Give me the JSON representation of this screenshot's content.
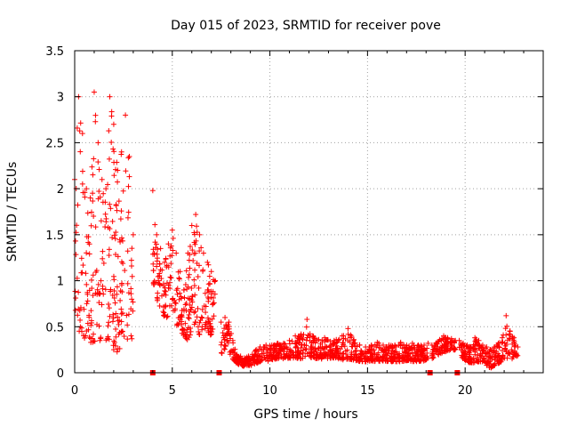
{
  "chart_data": {
    "type": "scatter",
    "title": "Day 015 of 2023, SRMTID for receiver pove",
    "xlabel": "GPS time / hours",
    "ylabel": "SRMTID / TECUs",
    "xlim": [
      0,
      24
    ],
    "ylim": [
      0,
      3.5
    ],
    "xticks": [
      0,
      5,
      10,
      15,
      20
    ],
    "xtick_labels": [
      "0",
      "5",
      "10",
      "15",
      "20"
    ],
    "yticks": [
      0,
      0.5,
      1,
      1.5,
      2,
      2.5,
      3,
      3.5
    ],
    "ytick_labels": [
      "0",
      "0.5",
      "1",
      "1.5",
      "2",
      "2.5",
      "3",
      "3.5"
    ],
    "grid": true,
    "marker": "plus",
    "color": "#ff0000",
    "zero_markers_x": [
      4.0,
      7.4,
      18.2,
      19.6
    ],
    "series": [
      {
        "name": "SRMTID",
        "segments": [
          {
            "x": [
              0.0,
              0.2,
              0.4,
              0.6,
              0.8,
              1.0,
              1.2,
              1.4,
              1.6,
              1.8,
              2.0,
              2.2,
              2.4,
              2.6,
              2.8,
              3.0
            ],
            "low": [
              0.65,
              0.45,
              0.35,
              0.4,
              0.3,
              0.35,
              0.3,
              0.4,
              0.35,
              0.3,
              0.25,
              0.2,
              0.3,
              0.35,
              0.3,
              0.4
            ],
            "high": [
              2.1,
              3.0,
              2.6,
              2.0,
              1.9,
              3.05,
              2.5,
              2.1,
              2.0,
              3.0,
              2.7,
              2.2,
              2.4,
              2.8,
              2.35,
              1.5
            ]
          },
          {
            "x": [
              4.0,
              4.2,
              4.4,
              4.6,
              4.8,
              5.0,
              5.2,
              5.4,
              5.6,
              5.8,
              6.0,
              6.2,
              6.4,
              6.6,
              6.8,
              7.0,
              7.2
            ],
            "low": [
              1.0,
              0.8,
              0.7,
              0.6,
              0.6,
              0.7,
              0.5,
              0.45,
              0.4,
              0.35,
              0.45,
              0.55,
              0.4,
              0.5,
              0.45,
              0.4,
              0.55
            ],
            "high": [
              1.98,
              1.5,
              1.35,
              1.2,
              1.4,
              1.55,
              1.3,
              1.1,
              0.9,
              1.3,
              1.6,
              1.72,
              1.5,
              1.3,
              1.2,
              1.1,
              1.0
            ]
          },
          {
            "x": [
              7.5,
              7.7,
              7.9,
              8.1,
              8.3,
              8.5,
              8.7,
              8.9,
              9.1,
              9.3,
              9.5,
              9.8,
              10.1,
              10.4,
              10.7,
              11.0,
              11.3,
              11.6,
              11.9,
              12.2,
              12.5,
              12.8,
              13.1,
              13.4,
              13.7,
              14.0,
              14.3,
              14.6,
              14.9,
              15.2,
              15.5,
              15.8,
              16.1,
              16.4,
              16.7,
              17.0,
              17.3,
              17.6,
              17.9,
              18.1
            ],
            "low": [
              0.2,
              0.25,
              0.22,
              0.15,
              0.1,
              0.08,
              0.07,
              0.08,
              0.08,
              0.1,
              0.12,
              0.12,
              0.14,
              0.15,
              0.15,
              0.16,
              0.16,
              0.15,
              0.15,
              0.16,
              0.15,
              0.15,
              0.16,
              0.16,
              0.14,
              0.15,
              0.14,
              0.12,
              0.12,
              0.13,
              0.12,
              0.13,
              0.12,
              0.12,
              0.12,
              0.13,
              0.12,
              0.12,
              0.13,
              0.15
            ],
            "high": [
              0.55,
              0.6,
              0.55,
              0.35,
              0.2,
              0.18,
              0.16,
              0.18,
              0.2,
              0.25,
              0.28,
              0.3,
              0.3,
              0.32,
              0.32,
              0.35,
              0.4,
              0.42,
              0.58,
              0.4,
              0.36,
              0.38,
              0.34,
              0.36,
              0.4,
              0.48,
              0.36,
              0.3,
              0.28,
              0.3,
              0.33,
              0.3,
              0.3,
              0.3,
              0.33,
              0.3,
              0.32,
              0.3,
              0.3,
              0.32
            ]
          },
          {
            "x": [
              18.3,
              18.5,
              18.7,
              18.9,
              19.1,
              19.3,
              19.5
            ],
            "low": [
              0.15,
              0.18,
              0.2,
              0.22,
              0.24,
              0.25,
              0.25
            ],
            "high": [
              0.3,
              0.32,
              0.36,
              0.4,
              0.38,
              0.37,
              0.35
            ]
          },
          {
            "x": [
              19.7,
              19.9,
              20.1,
              20.3,
              20.5,
              20.7,
              20.9,
              21.1,
              21.3,
              21.5,
              21.7,
              21.9,
              22.1,
              22.3,
              22.5,
              22.7
            ],
            "low": [
              0.2,
              0.15,
              0.12,
              0.1,
              0.1,
              0.12,
              0.12,
              0.08,
              0.05,
              0.08,
              0.1,
              0.12,
              0.15,
              0.15,
              0.15,
              0.18
            ],
            "high": [
              0.35,
              0.32,
              0.3,
              0.28,
              0.38,
              0.35,
              0.3,
              0.28,
              0.25,
              0.28,
              0.32,
              0.38,
              0.62,
              0.45,
              0.38,
              0.28
            ]
          }
        ]
      }
    ]
  }
}
